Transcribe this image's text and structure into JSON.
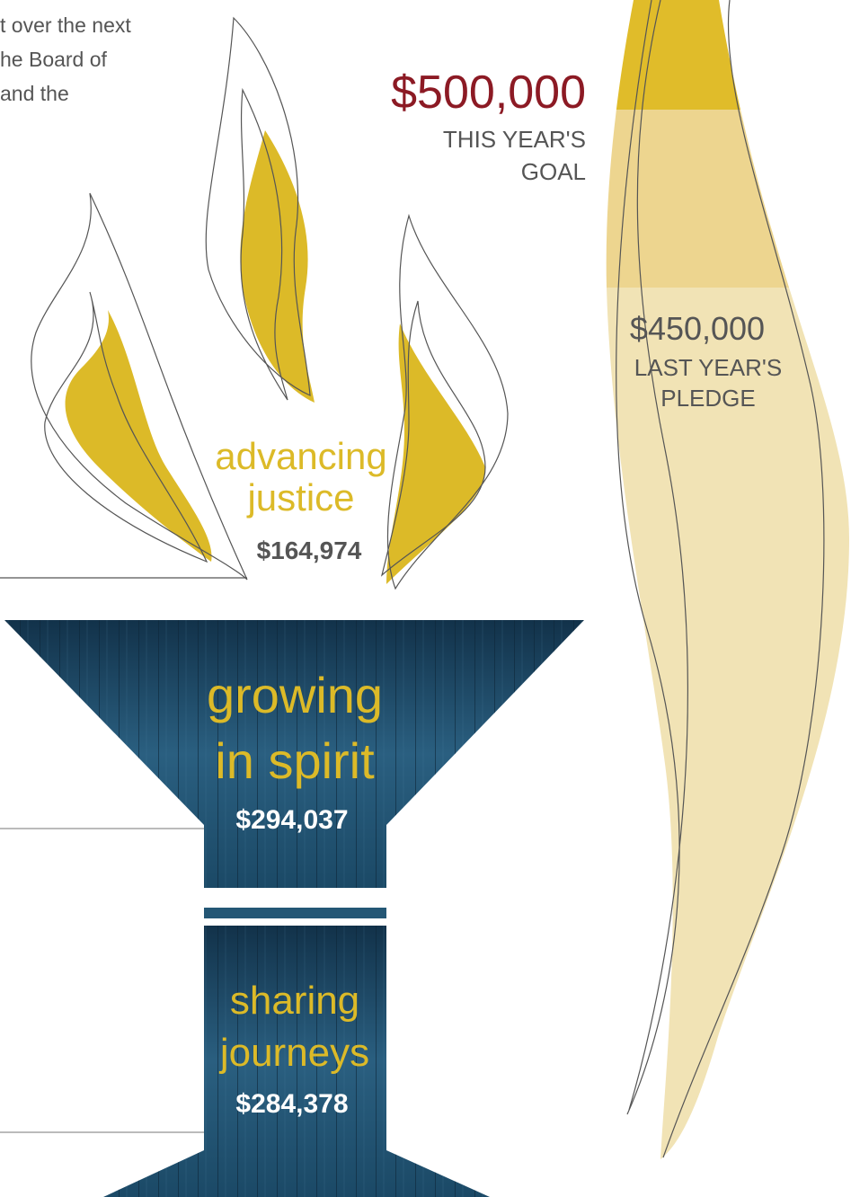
{
  "intro_text": [
    "t over the next",
    "he Board of",
    "and the"
  ],
  "goal": {
    "amount": "$500,000",
    "label_lines": [
      "THIS YEAR'S",
      "GOAL"
    ]
  },
  "last_year": {
    "amount": "$450,000",
    "label_lines": [
      "LAST YEAR'S",
      "PLEDGE"
    ]
  },
  "flames": {
    "label_lines": [
      "advancing",
      "justice"
    ],
    "amount": "$164,974"
  },
  "torch": {
    "sections": [
      {
        "label_lines": [
          "growing",
          "in spirit"
        ],
        "amount": "$294,037"
      },
      {
        "label_lines": [
          "sharing",
          "journeys"
        ],
        "amount": "$284,378"
      }
    ]
  }
}
